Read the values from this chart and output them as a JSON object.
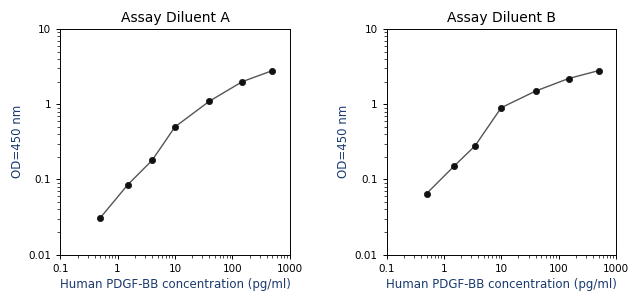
{
  "panel_A": {
    "title": "Assay Diluent A",
    "x": [
      0.5,
      1.5,
      4.0,
      10.0,
      40.0,
      150.0,
      500.0
    ],
    "y": [
      0.031,
      0.085,
      0.18,
      0.5,
      1.1,
      2.0,
      2.8
    ],
    "xlabel": "Human PDGF-BB concentration (pg/ml)",
    "ylabel": "OD=450 nm",
    "xlim": [
      0.1,
      1000
    ],
    "ylim": [
      0.01,
      10
    ]
  },
  "panel_B": {
    "title": "Assay Diluent B",
    "x": [
      0.5,
      1.5,
      3.5,
      10.0,
      40.0,
      150.0,
      500.0
    ],
    "y": [
      0.065,
      0.15,
      0.28,
      0.9,
      1.5,
      2.2,
      2.8
    ],
    "xlabel": "Human PDGF-BB concentration (pg/ml)",
    "ylabel": "OD=450 nm",
    "xlim": [
      0.1,
      1000
    ],
    "ylim": [
      0.01,
      10
    ]
  },
  "line_color": "#555555",
  "marker_color": "#111111",
  "marker_size": 4.5,
  "title_fontsize": 10,
  "label_fontsize": 8.5,
  "tick_fontsize": 7.5,
  "label_color": "#000000",
  "xlabel_color": "#1a3a6e",
  "ylabel_color": "#1a3a6e",
  "fig_width": 6.4,
  "fig_height": 3.02
}
